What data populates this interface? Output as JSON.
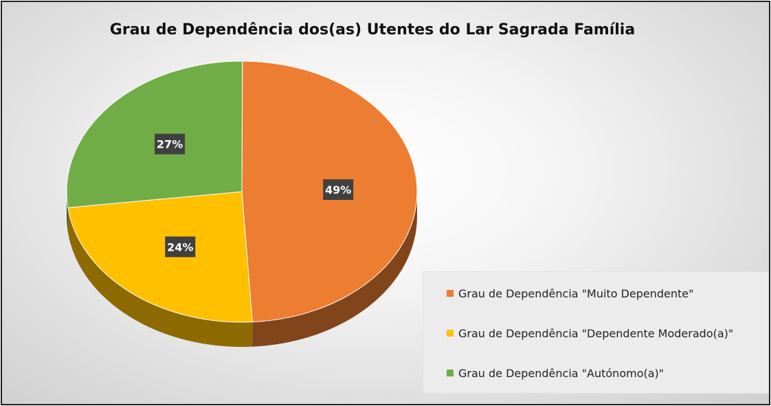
{
  "chart_data": {
    "type": "pie",
    "title": "Grau de Dependência dos(as) Utentes do Lar Sagrada Família",
    "series": [
      {
        "name": "Grau de Dependência \"Muito Dependente\"",
        "value": 49,
        "label": "49%",
        "color": "#ED7D31"
      },
      {
        "name": "Grau de Dependência \"Dependente Moderado(a)\"",
        "value": 24,
        "label": "24%",
        "color": "#FFC000"
      },
      {
        "name": "Grau de Dependência \"Autónomo(a)\"",
        "value": 27,
        "label": "27%",
        "color": "#70AD47"
      }
    ],
    "legend_position": "bottom-right",
    "style": "3d"
  }
}
